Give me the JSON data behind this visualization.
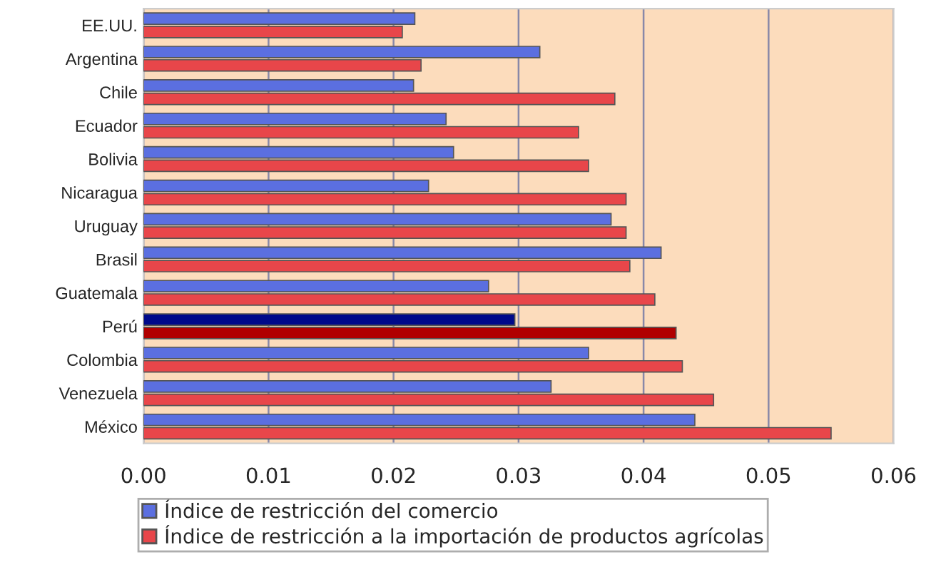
{
  "chart_data": {
    "type": "bar",
    "orientation": "horizontal",
    "categories": [
      "EE.UU.",
      "Argentina",
      "Chile",
      "Ecuador",
      "Bolivia",
      "Nicaragua",
      "Uruguay",
      "Brasil",
      "Guatemala",
      "Perú",
      "Colombia",
      "Venezuela",
      "México"
    ],
    "series": [
      {
        "name": "Índice de restricción del comercio",
        "color": "#5b6fe0",
        "colors": [
          "#5b6fe0",
          "#5b6fe0",
          "#5b6fe0",
          "#5b6fe0",
          "#5b6fe0",
          "#5b6fe0",
          "#5b6fe0",
          "#5b6fe0",
          "#5b6fe0",
          "#00098a",
          "#5b6fe0",
          "#5b6fe0",
          "#5b6fe0"
        ],
        "values": [
          0.0217,
          0.0317,
          0.0216,
          0.0242,
          0.0248,
          0.0228,
          0.0374,
          0.0414,
          0.0276,
          0.0297,
          0.0356,
          0.0326,
          0.0441
        ]
      },
      {
        "name": "Índice de restricción a la importación de productos agrícolas",
        "color": "#e8464a",
        "colors": [
          "#e8464a",
          "#e8464a",
          "#e8464a",
          "#e8464a",
          "#e8464a",
          "#e8464a",
          "#e8464a",
          "#e8464a",
          "#e8464a",
          "#b00000",
          "#e8464a",
          "#e8464a",
          "#e8464a"
        ],
        "values": [
          0.0207,
          0.0222,
          0.0377,
          0.0348,
          0.0356,
          0.0386,
          0.0386,
          0.0389,
          0.0409,
          0.0426,
          0.0431,
          0.0456,
          0.055
        ]
      }
    ],
    "xlim": [
      0,
      0.06
    ],
    "xticks": [
      {
        "value": 0,
        "label": "0.00"
      },
      {
        "value": 0.01,
        "label": "0.01"
      },
      {
        "value": 0.02,
        "label": "0.02"
      },
      {
        "value": 0.03,
        "label": "0.03"
      },
      {
        "value": 0.04,
        "label": "0.04"
      },
      {
        "value": 0.05,
        "label": "0.05"
      },
      {
        "value": 0.06,
        "label": "0.06"
      }
    ],
    "grid": "x",
    "legend": "bottom"
  }
}
